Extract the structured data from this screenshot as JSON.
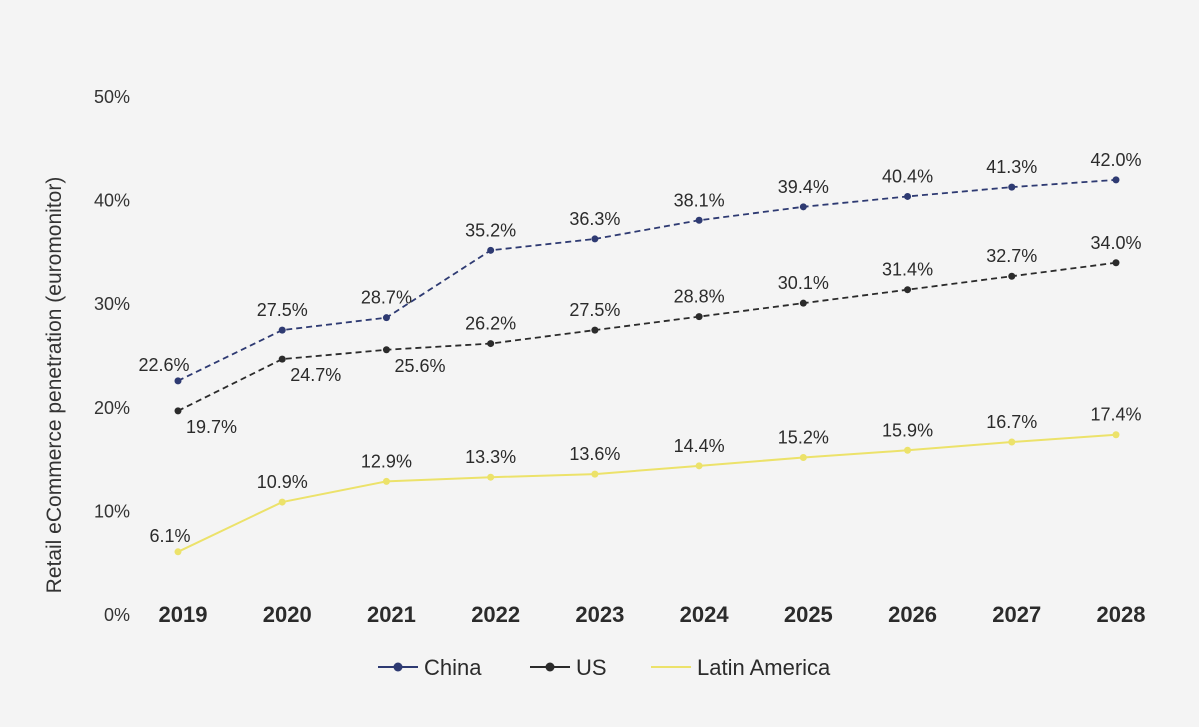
{
  "chart_data": {
    "type": "line",
    "title": "",
    "xlabel": "",
    "ylabel": "Retail eCommerce penetration (euromonitor)",
    "categories": [
      "2019",
      "2020",
      "2021",
      "2022",
      "2023",
      "2024",
      "2025",
      "2026",
      "2027",
      "2028"
    ],
    "ylim": [
      0,
      50
    ],
    "yticks": [
      "0%",
      "10%",
      "20%",
      "30%",
      "40%",
      "50%"
    ],
    "grid": false,
    "legend_position": "bottom",
    "series": [
      {
        "name": "China",
        "color": "#2e3a72",
        "line_style": "dashed",
        "values": [
          22.6,
          27.5,
          28.7,
          35.2,
          36.3,
          38.1,
          39.4,
          40.4,
          41.3,
          42.0
        ],
        "labels": [
          "22.6%",
          "27.5%",
          "28.7%",
          "35.2%",
          "36.3%",
          "38.1%",
          "39.4%",
          "40.4%",
          "41.3%",
          "42.0%"
        ]
      },
      {
        "name": "US",
        "color": "#2b2b2b",
        "line_style": "dashed",
        "values": [
          19.7,
          24.7,
          25.6,
          26.2,
          27.5,
          28.8,
          30.1,
          31.4,
          32.7,
          34.0
        ],
        "labels": [
          "19.7%",
          "24.7%",
          "25.6%",
          "26.2%",
          "27.5%",
          "28.8%",
          "30.1%",
          "31.4%",
          "32.7%",
          "34.0%"
        ]
      },
      {
        "name": "Latin America",
        "color": "#ece26a",
        "line_style": "solid",
        "values": [
          6.1,
          10.9,
          12.9,
          13.3,
          13.6,
          14.4,
          15.2,
          15.9,
          16.7,
          17.4
        ],
        "labels": [
          "6.1%",
          "10.9%",
          "12.9%",
          "13.3%",
          "13.6%",
          "14.4%",
          "15.2%",
          "15.9%",
          "16.7%",
          "17.4%"
        ]
      }
    ]
  }
}
